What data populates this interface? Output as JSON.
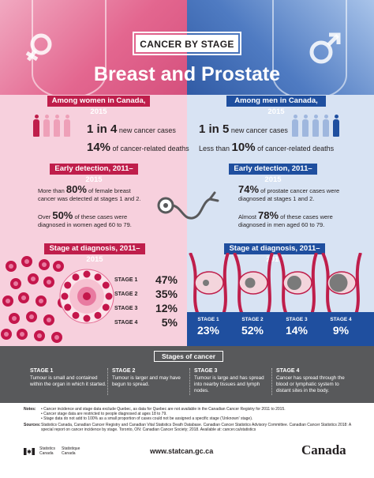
{
  "header": {
    "badge": "CANCER BY STAGE",
    "title": "Breast and Prostate"
  },
  "women": {
    "heading": "Among women in Canada, 2015",
    "line1_num": "1 in 4",
    "line1_text": " new cancer cases",
    "line2_num": "14%",
    "line2_text": " of cancer-related deaths",
    "people_highlighted": 1,
    "people_total": 4,
    "detection_heading": "Early detection, 2011–2015",
    "det1_pre": "More than ",
    "det1_num": "80%",
    "det1_post": " of female breast cancer was detected at stages 1 and 2.",
    "det2_pre": "Over ",
    "det2_num": "50%",
    "det2_post": " of these cases were diagnosed in women aged 60 to 79.",
    "stage_heading": "Stage at diagnosis, 2011–2015",
    "stages": [
      {
        "label": "STAGE 1",
        "value": "47%"
      },
      {
        "label": "STAGE 2",
        "value": "35%"
      },
      {
        "label": "STAGE 3",
        "value": "12%"
      },
      {
        "label": "STAGE 4",
        "value": "5%"
      }
    ]
  },
  "men": {
    "heading": "Among men in Canada, 2015",
    "line1_num": "1 in 5",
    "line1_text": " new cancer cases",
    "line2_pre": "Less than ",
    "line2_num": "10%",
    "line2_text": " of cancer-related deaths",
    "people_highlighted": 1,
    "people_total": 5,
    "detection_heading": "Early detection, 2011–2015",
    "det1_num": "74%",
    "det1_post": " of prostate cancer cases were diagnosed at stages 1 and 2.",
    "det2_pre": "Almost ",
    "det2_num": "78%",
    "det2_post": " of these cases were diagnosed in men aged 60 to 79.",
    "stage_heading": "Stage at diagnosis, 2011–2015",
    "stages": [
      {
        "label": "STAGE 1",
        "value": "23%"
      },
      {
        "label": "STAGE 2",
        "value": "52%"
      },
      {
        "label": "STAGE 3",
        "value": "14%"
      },
      {
        "label": "STAGE 4",
        "value": "9%"
      }
    ]
  },
  "stages_of_cancer": {
    "title": "Stages of cancer",
    "items": [
      {
        "title": "STAGE 1",
        "text": "Tumour is small and contained within the organ in which it started."
      },
      {
        "title": "STAGE 2",
        "text": "Tumour is larger and may have begun to spread."
      },
      {
        "title": "STAGE 3",
        "text": "Tumour is large and has spread into nearby tissues and lymph nodes."
      },
      {
        "title": "STAGE 4",
        "text": "Cancer has spread through the blood or lymphatic system to distant sites in the body."
      }
    ]
  },
  "notes": {
    "notes_label": "Notes:",
    "notes": [
      "Cancer incidence and stage data exclude Quebec, as data for Quebec are not available in the Canadian Cancer Registry for 2011 to 2015.",
      "Cancer stage data are restricted to people diagnosed at ages 18 to 79.",
      "Stage data do not add to 100% as a small proportion of cases could not be assigned a specific stage ('Unknown' stage)."
    ],
    "sources_label": "Sources:",
    "sources": "Statistics Canada, Canadian Cancer Registry and Canadian Vital Statistics Death Database. Canadian Cancer Statistics Advisory Committee. Canadian Cancer Statistics 2018: A special report on cancer incidence by stage. Toronto, ON: Canadian Cancer Society; 2018. Available at: cancer.ca/statistics"
  },
  "footer": {
    "statcan_en": "Statistics",
    "statcan_en2": "Canada",
    "statcan_fr": "Statistique",
    "statcan_fr2": "Canada",
    "url": "www.statcan.gc.ca",
    "wordmark": "Canada"
  },
  "colors": {
    "pink": "#e3668f",
    "dark_pink": "#bf1e4b",
    "blue": "#3f6ab3",
    "dark_blue": "#1f4f9f",
    "grey": "#58595b"
  }
}
